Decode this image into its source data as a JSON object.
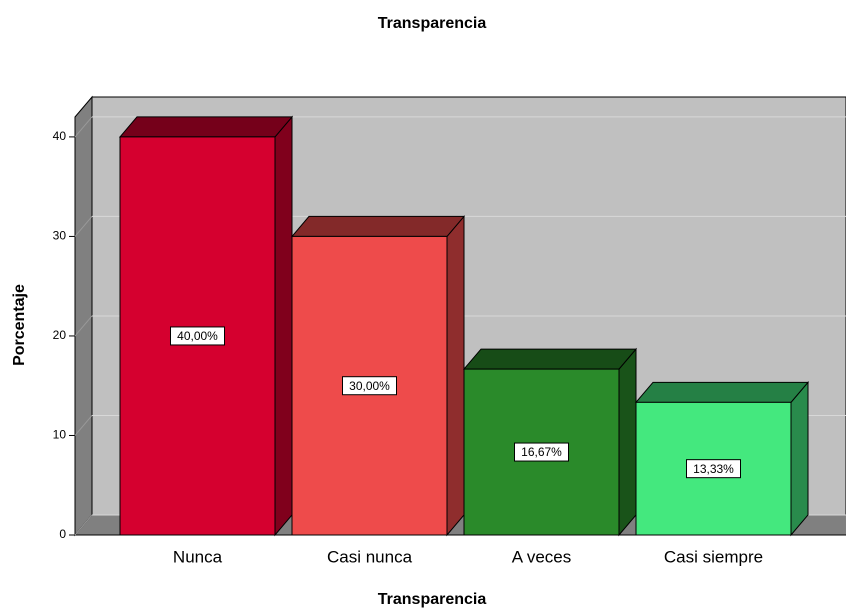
{
  "chart_data": {
    "type": "bar3d",
    "title": "Transparencia",
    "x_label": "Transparencia",
    "y_label": "Porcentaje",
    "categories": [
      "Nunca",
      "Casi nunca",
      "A veces",
      "Casi siempre"
    ],
    "values": [
      40,
      30,
      16.67,
      13.33
    ],
    "value_labels": [
      "40,00%",
      "30,00%",
      "16,67%",
      "13,33%"
    ],
    "colors": [
      "#d5002f",
      "#ee4b4b",
      "#2a8a2a",
      "#44e87e"
    ],
    "ylim": [
      0,
      42
    ],
    "yticks": [
      0,
      10,
      20,
      30,
      40
    ],
    "grid": true
  }
}
